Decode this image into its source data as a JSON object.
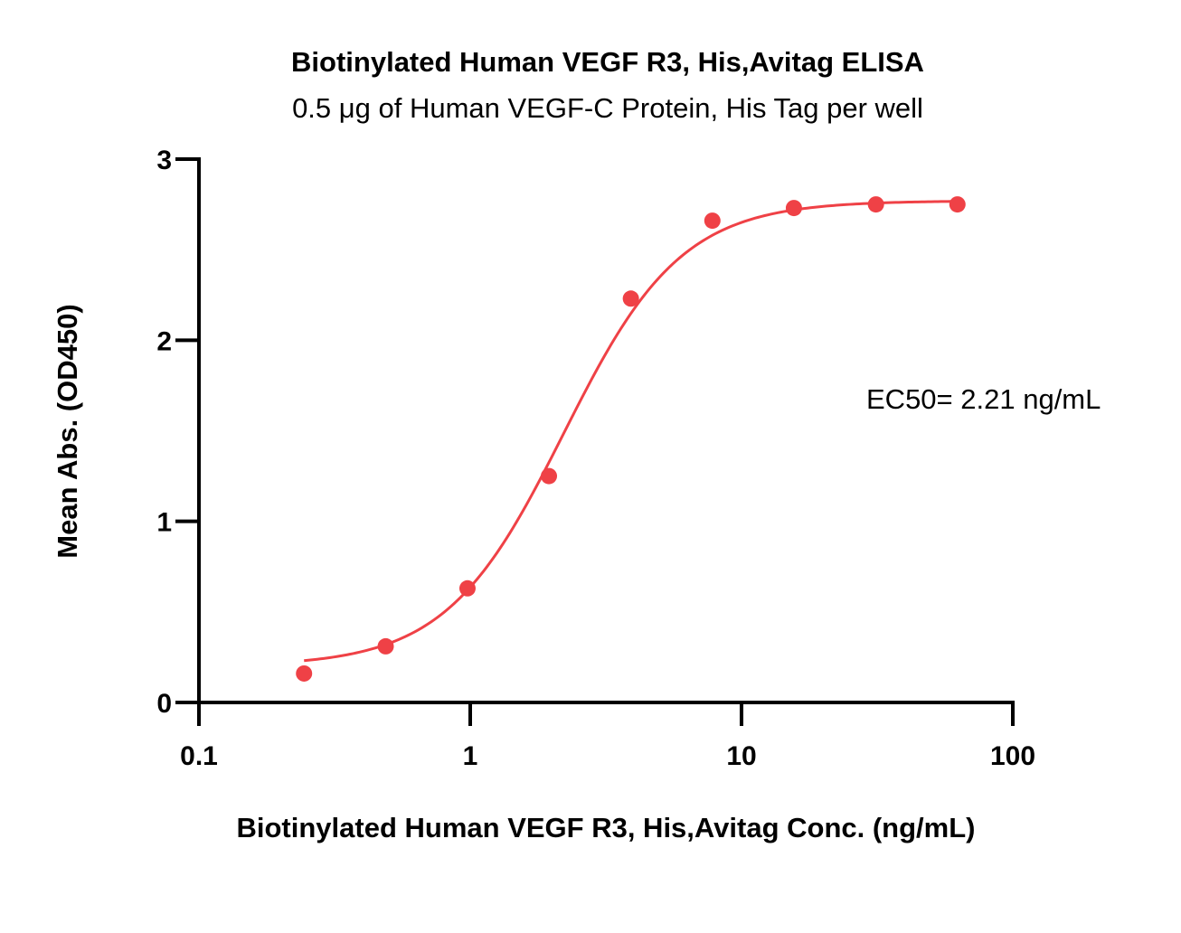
{
  "chart_data": {
    "type": "scatter",
    "title": "Biotinylated Human VEGF R3, His,Avitag ELISA",
    "subtitle": "0.5 μg of Human VEGF-C Protein, His Tag per well",
    "xlabel": "Biotinylated Human VEGF R3, His,Avitag Conc. (ng/mL)",
    "ylabel": "Mean Abs. (OD450)",
    "xscale": "log",
    "xlim": [
      0.1,
      100
    ],
    "ylim": [
      0,
      3
    ],
    "xticks": [
      0.1,
      1,
      10,
      100
    ],
    "xtick_labels": [
      "0.1",
      "1",
      "10",
      "100"
    ],
    "yticks": [
      0,
      1,
      2,
      3
    ],
    "ytick_labels": [
      "0",
      "1",
      "2",
      "3"
    ],
    "grid": false,
    "legend": "none",
    "color": "#ef4146",
    "series": [
      {
        "x": [
          0.244,
          0.488,
          0.977,
          1.95,
          3.91,
          7.81,
          15.6,
          31.3,
          62.5
        ],
        "y": [
          0.16,
          0.31,
          0.63,
          1.25,
          2.23,
          2.66,
          2.73,
          2.75,
          2.75
        ]
      }
    ],
    "fit": {
      "model": "4PL",
      "bottom": 0.2,
      "top": 2.77,
      "ec50": 2.21,
      "hill": 2.0
    },
    "annotation": "EC50= 2.21 ng/mL"
  }
}
